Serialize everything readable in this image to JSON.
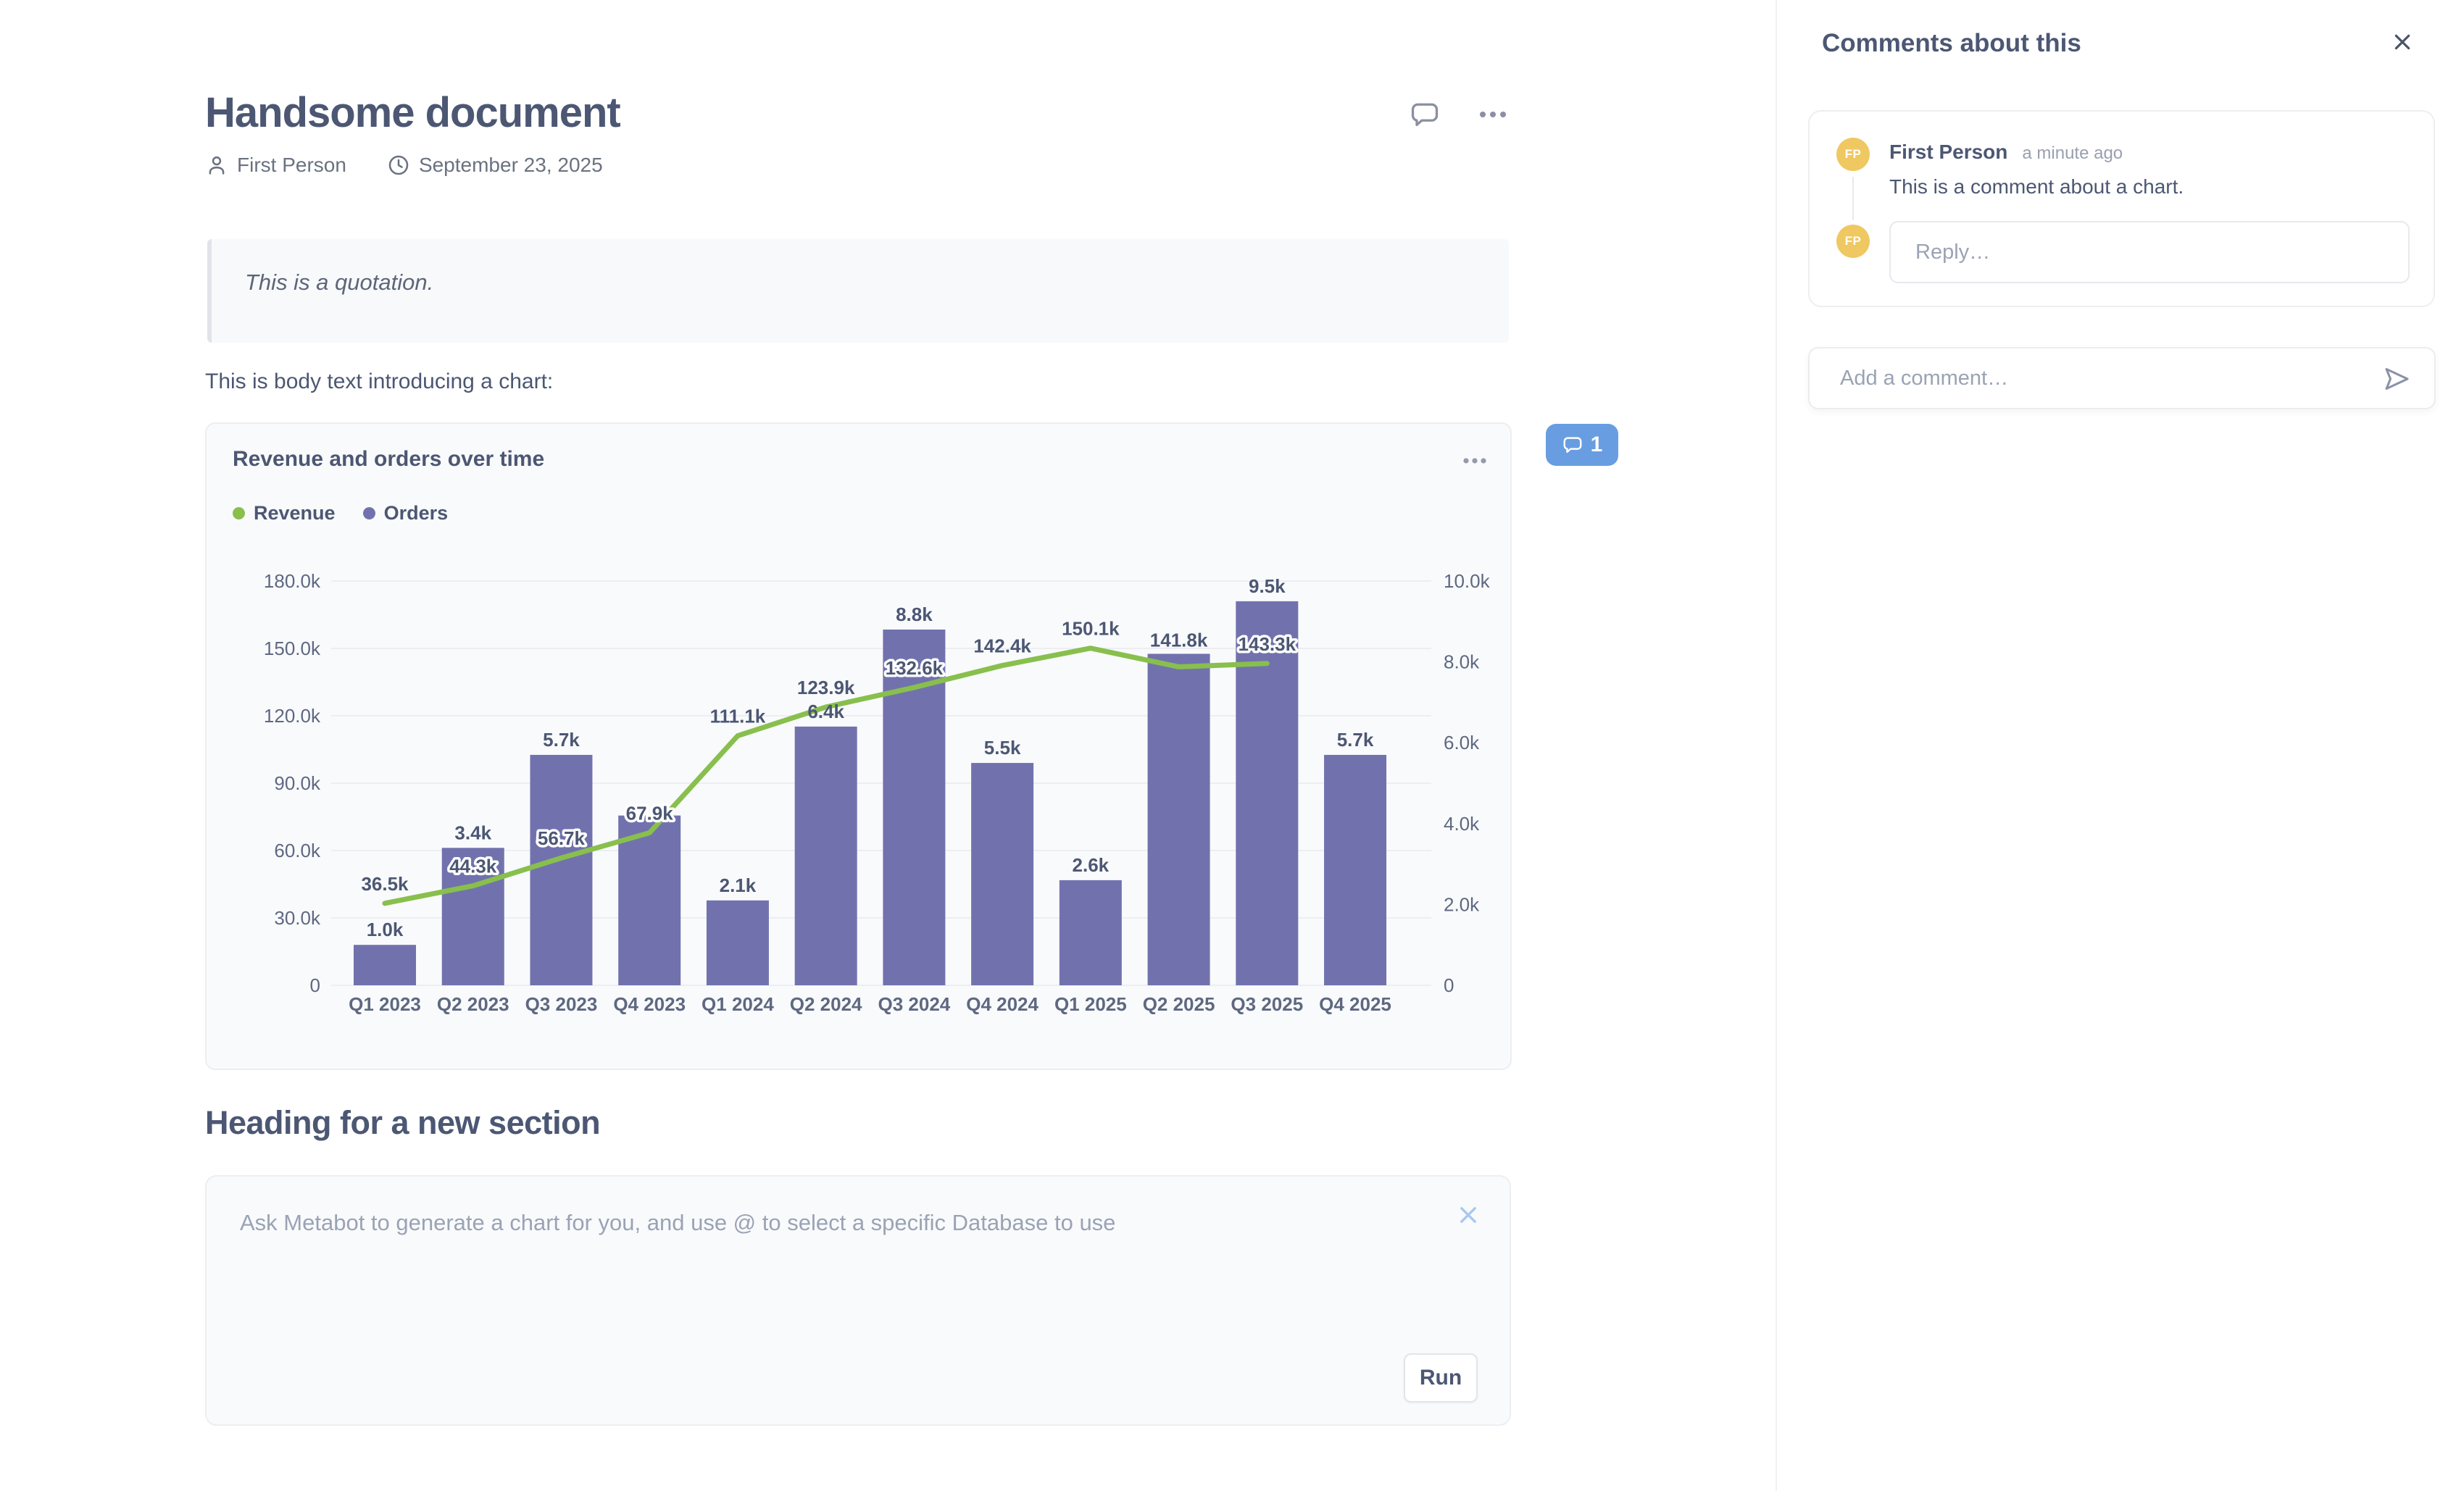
{
  "document": {
    "title": "Handsome document",
    "author": "First Person",
    "date": "September 23, 2025",
    "quote": "This is a quotation.",
    "body_intro": "This is body text introducing a chart:",
    "section_heading": "Heading for a new section"
  },
  "chart_card": {
    "title": "Revenue and orders over time",
    "comment_badge_count": "1"
  },
  "chart_data": {
    "type": "combo",
    "title": "Revenue and orders over time",
    "categories": [
      "Q1 2023",
      "Q2 2023",
      "Q3 2023",
      "Q4 2023",
      "Q1 2024",
      "Q2 2024",
      "Q3 2024",
      "Q4 2024",
      "Q1 2025",
      "Q2 2025",
      "Q3 2025",
      "Q4 2025"
    ],
    "series": [
      {
        "name": "Orders",
        "type": "bar",
        "yaxis": "right",
        "color": "#7172AD",
        "values": [
          1000,
          3400,
          5700,
          4200,
          2100,
          6400,
          8800,
          5500,
          2600,
          8200,
          9500,
          5700
        ],
        "labels": [
          "1.0k",
          "3.4k",
          "5.7k",
          null,
          "2.1k",
          "6.4k",
          "8.8k",
          "5.5k",
          "2.6k",
          null,
          "9.5k",
          "5.7k"
        ]
      },
      {
        "name": "Revenue",
        "type": "line",
        "yaxis": "left",
        "color": "#88BF4D",
        "values": [
          36500,
          44300,
          56700,
          67900,
          111100,
          123900,
          132600,
          142400,
          150100,
          141800,
          143300,
          null
        ],
        "labels": [
          "36.5k",
          "44.3k",
          "56.7k",
          "67.9k",
          "111.1k",
          "123.9k",
          "132.6k",
          "142.4k",
          "150.1k",
          "141.8k",
          "143.3k",
          null
        ],
        "outlined_labels": [
          false,
          true,
          true,
          true,
          false,
          false,
          true,
          false,
          false,
          false,
          true,
          false
        ]
      }
    ],
    "left_axis": {
      "ticks": [
        "0",
        "30.0k",
        "60.0k",
        "90.0k",
        "120.0k",
        "150.0k",
        "180.0k"
      ],
      "max": 180000
    },
    "right_axis": {
      "ticks": [
        "0",
        "2.0k",
        "4.0k",
        "6.0k",
        "8.0k",
        "10.0k"
      ],
      "max": 10000
    },
    "legend": [
      {
        "label": "Revenue",
        "color": "#88BF4D"
      },
      {
        "label": "Orders",
        "color": "#7172AD"
      }
    ],
    "grid": true,
    "legend_position": "top-left"
  },
  "metabot": {
    "placeholder": "Ask Metabot to generate a chart for you, and use @ to select a specific Database to use",
    "run_label": "Run"
  },
  "sidebar": {
    "title": "Comments about this",
    "comment": {
      "author": "First Person",
      "initials": "FP",
      "timestamp": "a minute ago",
      "text": "This is a comment about a chart.",
      "reply_placeholder": "Reply…"
    },
    "add_comment_placeholder": "Add a comment…"
  },
  "theme": {
    "badge_blue": "#689DE1",
    "avatar_yellow": "#EFC862",
    "text_dark": "#4C5773",
    "bar_purple": "#7172AD",
    "line_green": "#88BF4D"
  }
}
